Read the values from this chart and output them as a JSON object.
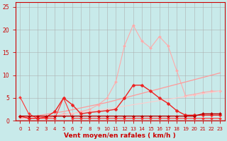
{
  "background_color": "#c8eaea",
  "grid_color": "#aacccc",
  "xlabel": "Vent moyen/en rafales ( km/h )",
  "xlim": [
    -0.5,
    23.5
  ],
  "ylim": [
    0,
    26
  ],
  "xticks": [
    0,
    1,
    2,
    3,
    4,
    5,
    6,
    7,
    8,
    9,
    10,
    11,
    12,
    13,
    14,
    15,
    16,
    17,
    18,
    19,
    20,
    21,
    22,
    23
  ],
  "yticks": [
    0,
    5,
    10,
    15,
    20,
    25
  ],
  "lines": [
    {
      "x": [
        0,
        1,
        2,
        3,
        4,
        5,
        6,
        7,
        8,
        9,
        10,
        11,
        12,
        13,
        14,
        15,
        16,
        17,
        18,
        19,
        20,
        21,
        22,
        23
      ],
      "y": [
        1.0,
        0.5,
        0.5,
        0.5,
        1.0,
        1.5,
        1.5,
        2.0,
        2.5,
        3.5,
        5.0,
        8.5,
        16.5,
        21.0,
        17.5,
        16.0,
        18.5,
        16.5,
        11.0,
        5.5,
        5.8,
        6.2,
        6.5,
        6.5
      ],
      "color": "#ffaaaa",
      "lw": 0.8,
      "marker": "D",
      "ms": 2.0,
      "zorder": 2
    },
    {
      "x": [
        0,
        1,
        2,
        3,
        4,
        5,
        6,
        7,
        8,
        9,
        10,
        11,
        12,
        13,
        14,
        15,
        16,
        17,
        18,
        19,
        20,
        21,
        22,
        23
      ],
      "y": [
        0.5,
        0.8,
        1.1,
        1.4,
        1.7,
        2.0,
        2.4,
        2.8,
        3.2,
        3.6,
        4.0,
        4.5,
        5.0,
        5.5,
        6.0,
        6.5,
        7.0,
        7.5,
        8.0,
        8.5,
        9.0,
        9.5,
        10.0,
        10.5
      ],
      "color": "#ff9999",
      "lw": 0.9,
      "marker": null,
      "ms": 0,
      "zorder": 2
    },
    {
      "x": [
        0,
        1,
        2,
        3,
        4,
        5,
        6,
        7,
        8,
        9,
        10,
        11,
        12,
        13,
        14,
        15,
        16,
        17,
        18,
        19,
        20,
        21,
        22,
        23
      ],
      "y": [
        0.3,
        0.5,
        0.7,
        0.9,
        1.1,
        1.3,
        1.6,
        1.8,
        2.1,
        2.3,
        2.6,
        2.9,
        3.2,
        3.5,
        3.8,
        4.1,
        4.4,
        4.7,
        5.0,
        5.3,
        5.6,
        5.9,
        6.2,
        6.5
      ],
      "color": "#ffcccc",
      "lw": 0.8,
      "marker": null,
      "ms": 0,
      "zorder": 2
    },
    {
      "x": [
        0,
        1,
        2,
        3,
        4,
        5,
        6,
        7,
        8,
        9,
        10,
        11,
        12,
        13,
        14,
        15,
        16,
        17,
        18,
        19,
        20,
        21,
        22,
        23
      ],
      "y": [
        1.0,
        0.5,
        0.5,
        0.8,
        2.0,
        5.0,
        3.5,
        1.5,
        1.8,
        2.0,
        2.2,
        2.5,
        5.0,
        7.8,
        7.8,
        6.5,
        5.0,
        3.8,
        2.2,
        1.2,
        1.2,
        1.2,
        1.2,
        1.2
      ],
      "color": "#ee2222",
      "lw": 1.0,
      "marker": "D",
      "ms": 2.5,
      "zorder": 4
    },
    {
      "x": [
        0,
        1,
        2,
        3,
        4,
        5,
        6,
        7,
        8,
        9,
        10,
        11,
        12,
        13,
        14,
        15,
        16,
        17,
        18,
        19,
        20,
        21,
        22,
        23
      ],
      "y": [
        1.0,
        1.0,
        1.0,
        1.0,
        1.0,
        1.0,
        1.0,
        1.0,
        1.0,
        1.0,
        1.0,
        1.0,
        1.0,
        1.0,
        1.0,
        1.0,
        1.0,
        1.0,
        1.0,
        1.0,
        1.0,
        1.5,
        1.5,
        1.5
      ],
      "color": "#bb0000",
      "lw": 1.0,
      "marker": "D",
      "ms": 2.0,
      "zorder": 5
    },
    {
      "x": [
        0,
        1,
        2,
        3,
        4,
        5,
        6,
        7,
        8,
        9,
        10,
        11,
        12,
        13,
        14,
        15,
        16,
        17,
        18,
        19,
        20,
        21,
        22,
        23
      ],
      "y": [
        5.2,
        1.5,
        0.5,
        0.5,
        0.5,
        5.0,
        0.5,
        0.5,
        0.5,
        0.5,
        0.5,
        0.5,
        0.5,
        0.5,
        0.5,
        0.5,
        0.5,
        0.5,
        0.5,
        0.5,
        0.5,
        0.5,
        0.5,
        0.5
      ],
      "color": "#ff3333",
      "lw": 0.8,
      "marker": "D",
      "ms": 2.0,
      "zorder": 3
    }
  ],
  "tick_color": "#cc0000",
  "label_color": "#cc0000",
  "tick_fontsize": 5.0,
  "label_fontsize": 6.5
}
